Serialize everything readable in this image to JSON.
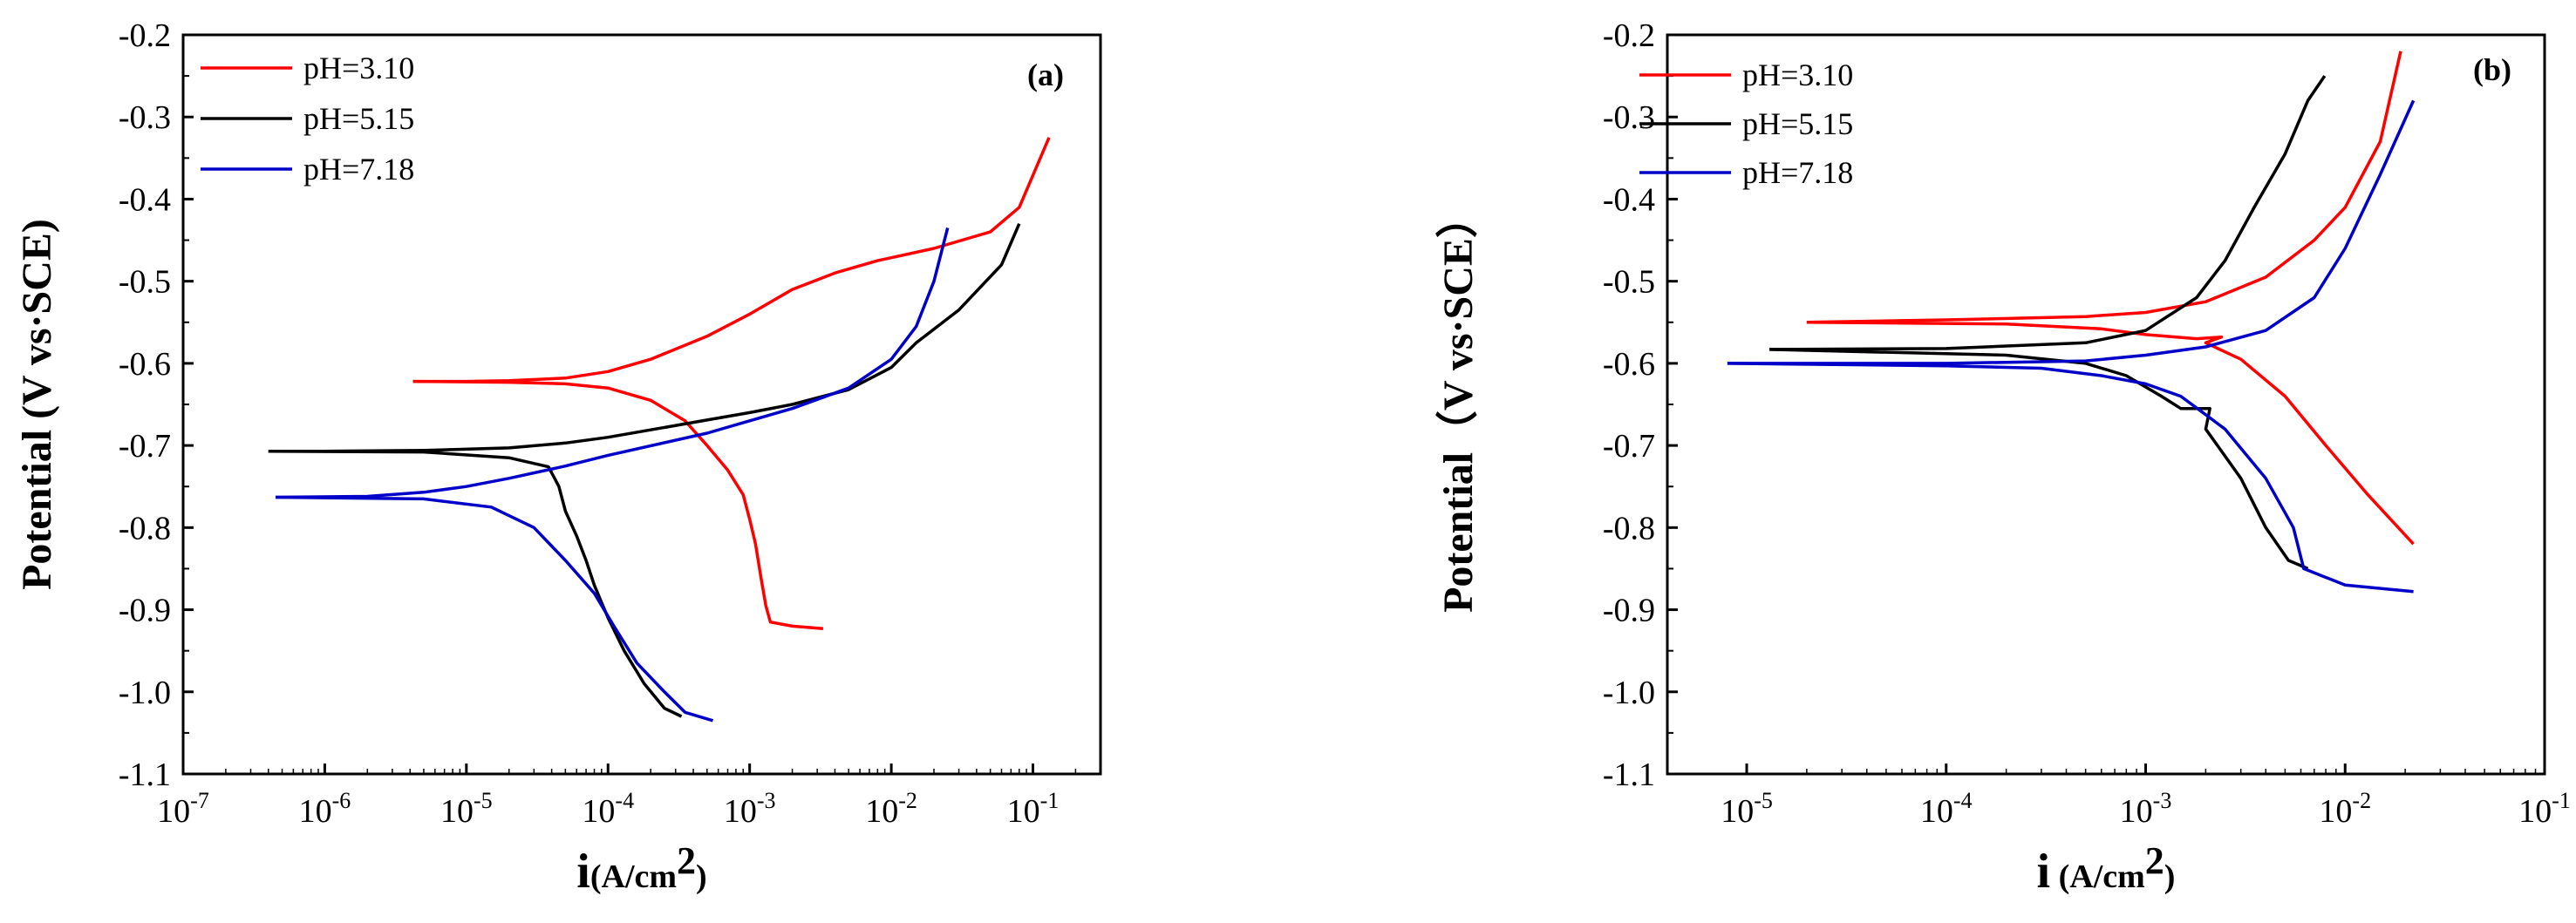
{
  "chart_data": [
    {
      "panel": "(a)",
      "type": "line",
      "xscale": "log",
      "xlabel_main": "i",
      "xlabel_unit": "(A/cm",
      "xlabel_sup": "2",
      "xlabel_close": ")",
      "ylabel": "Potential (V vs·SCE)",
      "xlim": [
        1e-07,
        0.3
      ],
      "ylim": [
        -1.1,
        -0.2
      ],
      "xticks": [
        {
          "value": 1e-07,
          "base": "10",
          "exp": "-7"
        },
        {
          "value": 1e-06,
          "base": "10",
          "exp": "-6"
        },
        {
          "value": 1e-05,
          "base": "10",
          "exp": "-5"
        },
        {
          "value": 0.0001,
          "base": "10",
          "exp": "-4"
        },
        {
          "value": 0.001,
          "base": "10",
          "exp": "-3"
        },
        {
          "value": 0.01,
          "base": "10",
          "exp": "-2"
        },
        {
          "value": 0.1,
          "base": "10",
          "exp": "-1"
        }
      ],
      "yticks": [
        -0.2,
        -0.3,
        -0.4,
        -0.5,
        -0.6,
        -0.7,
        -0.8,
        -0.9,
        -1.0,
        -1.1
      ],
      "ytick_labels": [
        "-0.2",
        "-0.3",
        "-0.4",
        "-0.5",
        "-0.6",
        "-0.7",
        "-0.8",
        "-0.9",
        "-1.0",
        "-1.1"
      ],
      "legend_position": "top-left",
      "series": [
        {
          "name": "pH=3.10",
          "color": "#ff0000",
          "anodic": [
            [
              4.2e-06,
              -0.622
            ],
            [
              1e-05,
              -0.622
            ],
            [
              2e-05,
              -0.621
            ],
            [
              5e-05,
              -0.618
            ],
            [
              0.0001,
              -0.61
            ],
            [
              0.0002,
              -0.595
            ],
            [
              0.0005,
              -0.567
            ],
            [
              0.001,
              -0.54
            ],
            [
              0.002,
              -0.51
            ],
            [
              0.004,
              -0.49
            ],
            [
              0.008,
              -0.475
            ],
            [
              0.02,
              -0.46
            ],
            [
              0.05,
              -0.44
            ],
            [
              0.08,
              -0.41
            ],
            [
              0.13,
              -0.325
            ]
          ],
          "cathodic": [
            [
              4.2e-06,
              -0.622
            ],
            [
              2e-05,
              -0.623
            ],
            [
              5e-05,
              -0.625
            ],
            [
              0.0001,
              -0.63
            ],
            [
              0.0002,
              -0.645
            ],
            [
              0.00035,
              -0.67
            ],
            [
              0.0005,
              -0.7
            ],
            [
              0.0007,
              -0.73
            ],
            [
              0.0009,
              -0.76
            ],
            [
              0.001,
              -0.79
            ],
            [
              0.0011,
              -0.82
            ],
            [
              0.0012,
              -0.86
            ],
            [
              0.0013,
              -0.895
            ],
            [
              0.0014,
              -0.915
            ],
            [
              0.002,
              -0.92
            ],
            [
              0.0033,
              -0.923
            ]
          ]
        },
        {
          "name": "pH=5.15",
          "color": "#000000",
          "anodic": [
            [
              4e-07,
              -0.707
            ],
            [
              1e-06,
              -0.707
            ],
            [
              5e-06,
              -0.706
            ],
            [
              2e-05,
              -0.703
            ],
            [
              5e-05,
              -0.697
            ],
            [
              0.0001,
              -0.69
            ],
            [
              0.0002,
              -0.681
            ],
            [
              0.0005,
              -0.669
            ],
            [
              0.001,
              -0.66
            ],
            [
              0.002,
              -0.65
            ],
            [
              0.005,
              -0.632
            ],
            [
              0.01,
              -0.605
            ],
            [
              0.015,
              -0.575
            ],
            [
              0.03,
              -0.535
            ],
            [
              0.06,
              -0.48
            ],
            [
              0.08,
              -0.43
            ]
          ],
          "cathodic": [
            [
              4e-07,
              -0.707
            ],
            [
              5e-06,
              -0.708
            ],
            [
              2e-05,
              -0.715
            ],
            [
              3.8e-05,
              -0.726
            ],
            [
              4.5e-05,
              -0.75
            ],
            [
              5e-05,
              -0.78
            ],
            [
              6e-05,
              -0.81
            ],
            [
              7e-05,
              -0.84
            ],
            [
              8e-05,
              -0.87
            ],
            [
              0.0001,
              -0.91
            ],
            [
              0.00013,
              -0.95
            ],
            [
              0.00018,
              -0.99
            ],
            [
              0.00025,
              -1.02
            ],
            [
              0.00033,
              -1.03
            ]
          ]
        },
        {
          "name": "pH=7.18",
          "color": "#0000c8",
          "anodic": [
            [
              4.5e-07,
              -0.763
            ],
            [
              2e-06,
              -0.762
            ],
            [
              5e-06,
              -0.757
            ],
            [
              1e-05,
              -0.75
            ],
            [
              2e-05,
              -0.74
            ],
            [
              5e-05,
              -0.725
            ],
            [
              0.0001,
              -0.712
            ],
            [
              0.0005,
              -0.685
            ],
            [
              0.001,
              -0.67
            ],
            [
              0.002,
              -0.655
            ],
            [
              0.005,
              -0.63
            ],
            [
              0.01,
              -0.595
            ],
            [
              0.015,
              -0.555
            ],
            [
              0.02,
              -0.5
            ],
            [
              0.025,
              -0.435
            ]
          ],
          "cathodic": [
            [
              4.5e-07,
              -0.763
            ],
            [
              5e-06,
              -0.765
            ],
            [
              1.5e-05,
              -0.775
            ],
            [
              3e-05,
              -0.8
            ],
            [
              5e-05,
              -0.84
            ],
            [
              8e-05,
              -0.88
            ],
            [
              0.00011,
              -0.92
            ],
            [
              0.00016,
              -0.965
            ],
            [
              0.00025,
              -1.0
            ],
            [
              0.00035,
              -1.025
            ],
            [
              0.00055,
              -1.035
            ]
          ]
        }
      ]
    },
    {
      "panel": "(b)",
      "type": "line",
      "xscale": "log",
      "xlabel_main": "i",
      "xlabel_unit": " (A/cm",
      "xlabel_sup": "2",
      "xlabel_close": ")",
      "ylabel": "Potential（V vs·SCE）",
      "xlim": [
        4e-06,
        0.1
      ],
      "ylim": [
        -1.1,
        -0.2
      ],
      "xticks": [
        {
          "value": 1e-05,
          "base": "10",
          "exp": "-5"
        },
        {
          "value": 0.0001,
          "base": "10",
          "exp": "-4"
        },
        {
          "value": 0.001,
          "base": "10",
          "exp": "-3"
        },
        {
          "value": 0.01,
          "base": "10",
          "exp": "-2"
        },
        {
          "value": 0.1,
          "base": "10",
          "exp": "-1"
        }
      ],
      "yticks": [
        -0.2,
        -0.3,
        -0.4,
        -0.5,
        -0.6,
        -0.7,
        -0.8,
        -0.9,
        -1.0,
        -1.1
      ],
      "ytick_labels": [
        "-0.2",
        "-0.3",
        "-0.4",
        "-0.5",
        "-0.6",
        "-0.7",
        "-0.8",
        "-0.9",
        "-1.0",
        "-1.1"
      ],
      "legend_position": "top-left",
      "series": [
        {
          "name": "pH=3.10",
          "color": "#ff0000",
          "anodic": [
            [
              2e-05,
              -0.55
            ],
            [
              0.0001,
              -0.547
            ],
            [
              0.0005,
              -0.543
            ],
            [
              0.001,
              -0.538
            ],
            [
              0.002,
              -0.525
            ],
            [
              0.004,
              -0.495
            ],
            [
              0.007,
              -0.45
            ],
            [
              0.01,
              -0.41
            ],
            [
              0.015,
              -0.33
            ],
            [
              0.019,
              -0.22
            ]
          ],
          "cathodic": [
            [
              2e-05,
              -0.55
            ],
            [
              0.0002,
              -0.552
            ],
            [
              0.0006,
              -0.558
            ],
            [
              0.001,
              -0.565
            ],
            [
              0.0018,
              -0.57
            ],
            [
              0.0024,
              -0.568
            ],
            [
              0.002,
              -0.575
            ],
            [
              0.003,
              -0.595
            ],
            [
              0.005,
              -0.64
            ],
            [
              0.008,
              -0.7
            ],
            [
              0.013,
              -0.76
            ],
            [
              0.022,
              -0.82
            ]
          ]
        },
        {
          "name": "pH=5.15",
          "color": "#000000",
          "anodic": [
            [
              1.3e-05,
              -0.583
            ],
            [
              0.0001,
              -0.582
            ],
            [
              0.0005,
              -0.575
            ],
            [
              0.001,
              -0.56
            ],
            [
              0.0018,
              -0.52
            ],
            [
              0.0025,
              -0.475
            ],
            [
              0.0035,
              -0.41
            ],
            [
              0.005,
              -0.345
            ],
            [
              0.0065,
              -0.28
            ],
            [
              0.0079,
              -0.25
            ]
          ],
          "cathodic": [
            [
              1.3e-05,
              -0.583
            ],
            [
              0.0002,
              -0.59
            ],
            [
              0.0005,
              -0.6
            ],
            [
              0.0008,
              -0.615
            ],
            [
              0.0012,
              -0.64
            ],
            [
              0.0015,
              -0.655
            ],
            [
              0.0021,
              -0.655
            ],
            [
              0.002,
              -0.68
            ],
            [
              0.003,
              -0.74
            ],
            [
              0.004,
              -0.8
            ],
            [
              0.0052,
              -0.84
            ],
            [
              0.0065,
              -0.85
            ]
          ]
        },
        {
          "name": "pH=7.18",
          "color": "#0000c8",
          "anodic": [
            [
              8e-06,
              -0.6
            ],
            [
              0.0001,
              -0.6
            ],
            [
              0.0005,
              -0.597
            ],
            [
              0.001,
              -0.59
            ],
            [
              0.002,
              -0.58
            ],
            [
              0.004,
              -0.56
            ],
            [
              0.007,
              -0.52
            ],
            [
              0.01,
              -0.46
            ],
            [
              0.015,
              -0.37
            ],
            [
              0.022,
              -0.28
            ]
          ],
          "cathodic": [
            [
              8e-06,
              -0.6
            ],
            [
              0.0001,
              -0.603
            ],
            [
              0.0003,
              -0.606
            ],
            [
              0.0006,
              -0.615
            ],
            [
              0.001,
              -0.625
            ],
            [
              0.0015,
              -0.64
            ],
            [
              0.0025,
              -0.68
            ],
            [
              0.004,
              -0.74
            ],
            [
              0.0055,
              -0.8
            ],
            [
              0.0062,
              -0.85
            ],
            [
              0.01,
              -0.87
            ],
            [
              0.022,
              -0.878
            ]
          ]
        }
      ]
    }
  ]
}
